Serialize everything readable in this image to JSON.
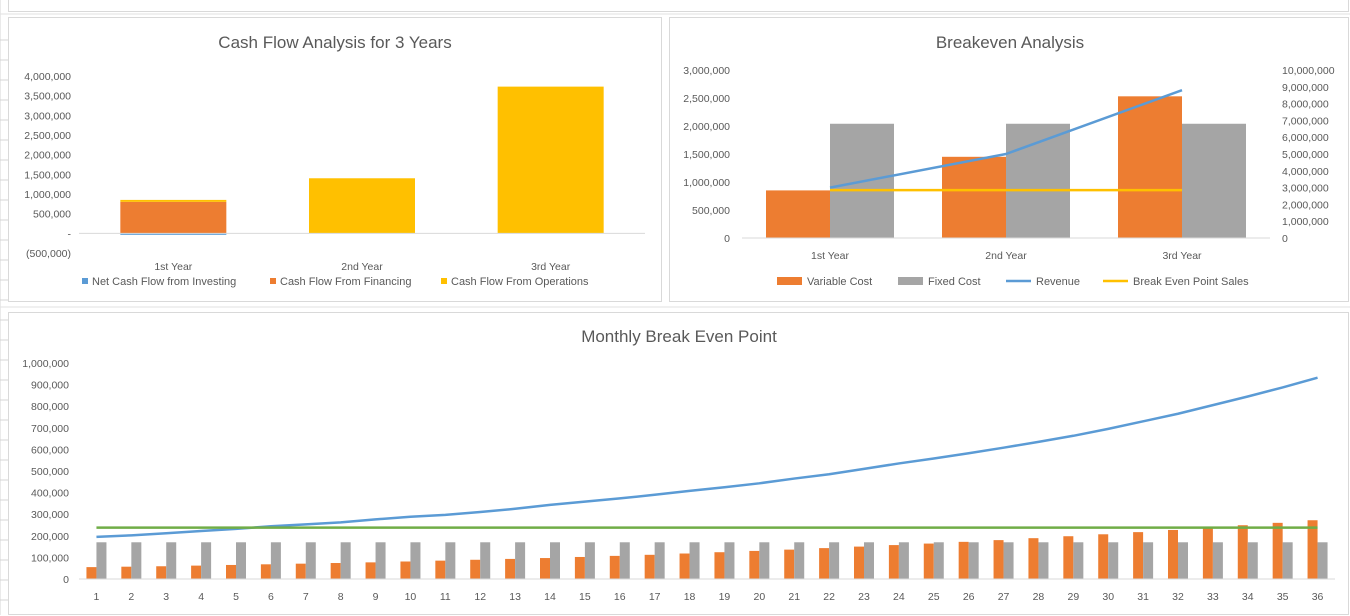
{
  "colors": {
    "blue": "#5b9bd5",
    "orange": "#ed7d31",
    "gray": "#a5a5a5",
    "yellow": "#ffc000",
    "green": "#70ad47",
    "text": "#595959",
    "axis": "#d9d9d9"
  },
  "chart_data": [
    {
      "type": "bar",
      "stacked": true,
      "title": "Cash Flow Analysis for 3 Years",
      "categories": [
        "1st Year",
        "2nd Year",
        "3rd Year"
      ],
      "series": [
        {
          "name": "Net Cash Flow from Investing",
          "color": "#5b9bd5",
          "values": [
            -30000,
            0,
            0
          ]
        },
        {
          "name": "Cash Flow From Financing",
          "color": "#ed7d31",
          "values": [
            800000,
            0,
            0
          ]
        },
        {
          "name": "Cash Flow From Operations",
          "color": "#ffc000",
          "values": [
            50000,
            1400000,
            3730000
          ]
        }
      ],
      "ylim": [
        -500000,
        4000000
      ],
      "yticks": [
        -500000,
        0,
        500000,
        1000000,
        1500000,
        2000000,
        2500000,
        3000000,
        3500000,
        4000000
      ],
      "ytick_labels": [
        "(500,000)",
        "-",
        "500,000",
        "1,000,000",
        "1,500,000",
        "2,000,000",
        "2,500,000",
        "3,000,000",
        "3,500,000",
        "4,000,000"
      ],
      "legend": "bottom",
      "grid": false
    },
    {
      "type": "bar",
      "title": "Breakeven Analysis",
      "categories": [
        "1st Year",
        "2nd Year",
        "3rd Year"
      ],
      "series": [
        {
          "name": "Variable Cost",
          "color": "#ed7d31",
          "kind": "bar",
          "axis": "left",
          "values": [
            850000,
            1450000,
            2530000
          ]
        },
        {
          "name": "Fixed Cost",
          "color": "#a5a5a5",
          "kind": "bar",
          "axis": "left",
          "values": [
            2040000,
            2040000,
            2040000
          ]
        },
        {
          "name": "Revenue",
          "color": "#5b9bd5",
          "kind": "line",
          "axis": "right",
          "values": [
            3000000,
            5000000,
            8800000
          ]
        },
        {
          "name": "Break Even Point Sales",
          "color": "#ffc000",
          "kind": "line",
          "axis": "right",
          "values": [
            2850000,
            2850000,
            2850000
          ]
        }
      ],
      "ylim": [
        0,
        3000000
      ],
      "yticks": [
        0,
        500000,
        1000000,
        1500000,
        2000000,
        2500000,
        3000000
      ],
      "ytick_labels": [
        "0",
        "500,000",
        "1,000,000",
        "1,500,000",
        "2,000,000",
        "2,500,000",
        "3,000,000"
      ],
      "y2lim": [
        0,
        10000000
      ],
      "y2ticks": [
        0,
        1000000,
        2000000,
        3000000,
        4000000,
        5000000,
        6000000,
        7000000,
        8000000,
        9000000,
        10000000
      ],
      "y2tick_labels": [
        "0",
        "1,000,000",
        "2,000,000",
        "3,000,000",
        "4,000,000",
        "5,000,000",
        "6,000,000",
        "7,000,000",
        "8,000,000",
        "9,000,000",
        "10,000,000"
      ],
      "legend": "bottom",
      "grid": false
    },
    {
      "type": "bar",
      "title": "Monthly Break Even Point",
      "categories": [
        "1",
        "2",
        "3",
        "4",
        "5",
        "6",
        "7",
        "8",
        "9",
        "10",
        "11",
        "12",
        "13",
        "14",
        "15",
        "16",
        "17",
        "18",
        "19",
        "20",
        "21",
        "22",
        "23",
        "24",
        "25",
        "26",
        "27",
        "28",
        "29",
        "30",
        "31",
        "32",
        "33",
        "34",
        "35",
        "36"
      ],
      "series": [
        {
          "color": "#ed7d31",
          "kind": "bar",
          "values": [
            55000,
            57000,
            59000,
            62000,
            65000,
            68000,
            71000,
            74000,
            77000,
            81000,
            85000,
            89000,
            93000,
            97000,
            102000,
            107000,
            112000,
            118000,
            124000,
            130000,
            136000,
            143000,
            150000,
            157000,
            164000,
            172000,
            180000,
            189000,
            198000,
            207000,
            217000,
            227000,
            238000,
            249000,
            260000,
            272000
          ]
        },
        {
          "color": "#a5a5a5",
          "kind": "bar",
          "values": [
            170000,
            170000,
            170000,
            170000,
            170000,
            170000,
            170000,
            170000,
            170000,
            170000,
            170000,
            170000,
            170000,
            170000,
            170000,
            170000,
            170000,
            170000,
            170000,
            170000,
            170000,
            170000,
            170000,
            170000,
            170000,
            170000,
            170000,
            170000,
            170000,
            170000,
            170000,
            170000,
            170000,
            170000,
            170000,
            170000
          ]
        },
        {
          "color": "#5b9bd5",
          "kind": "line",
          "values": [
            195000,
            202000,
            212000,
            222000,
            232000,
            244000,
            253000,
            262000,
            276000,
            288000,
            297000,
            310000,
            325000,
            343000,
            358000,
            373000,
            390000,
            408000,
            425000,
            443000,
            465000,
            485000,
            510000,
            535000,
            558000,
            582000,
            608000,
            635000,
            663000,
            695000,
            730000,
            765000,
            805000,
            845000,
            887000,
            932000
          ]
        },
        {
          "color": "#70ad47",
          "kind": "line",
          "values": [
            238000,
            238000,
            238000,
            238000,
            238000,
            238000,
            238000,
            238000,
            238000,
            238000,
            238000,
            238000,
            238000,
            238000,
            238000,
            238000,
            238000,
            238000,
            238000,
            238000,
            238000,
            238000,
            238000,
            238000,
            238000,
            238000,
            238000,
            238000,
            238000,
            238000,
            238000,
            238000,
            238000,
            238000,
            238000,
            238000
          ]
        }
      ],
      "ylim": [
        0,
        1000000
      ],
      "yticks": [
        0,
        100000,
        200000,
        300000,
        400000,
        500000,
        600000,
        700000,
        800000,
        900000,
        1000000
      ],
      "ytick_labels": [
        "0",
        "100,000",
        "200,000",
        "300,000",
        "400,000",
        "500,000",
        "600,000",
        "700,000",
        "800,000",
        "900,000",
        "1,000,000"
      ],
      "legend": "none",
      "grid": false
    }
  ]
}
